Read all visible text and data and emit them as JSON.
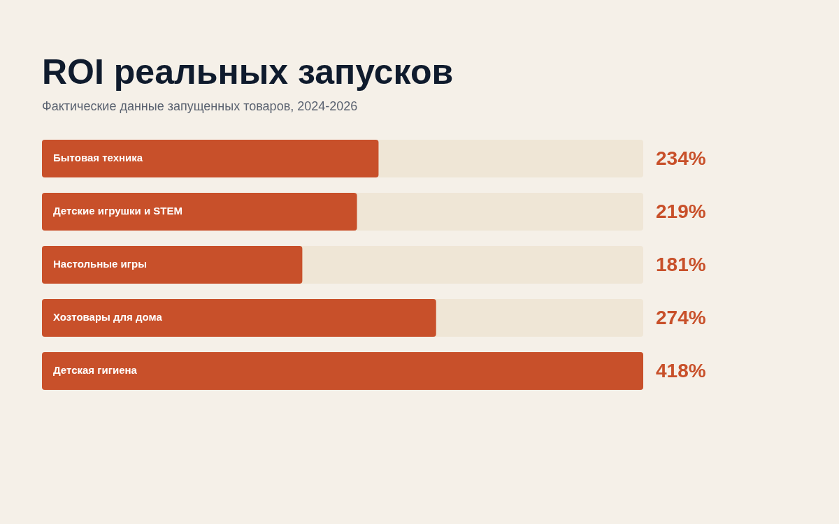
{
  "chart_data": {
    "type": "bar",
    "orientation": "horizontal",
    "title": "ROI реальных запусков",
    "subtitle": "Фактические данные запущенных товаров, 2024-2026",
    "categories": [
      "Бытовая техника",
      "Детские игрушки и STEM",
      "Настольные игры",
      "Хозтовары для дома",
      "Детская гигиена"
    ],
    "values": [
      234,
      219,
      181,
      274,
      418
    ],
    "value_labels": [
      "234%",
      "219%",
      "181%",
      "274%",
      "418%"
    ],
    "color": "#c8502a",
    "legend": false
  }
}
